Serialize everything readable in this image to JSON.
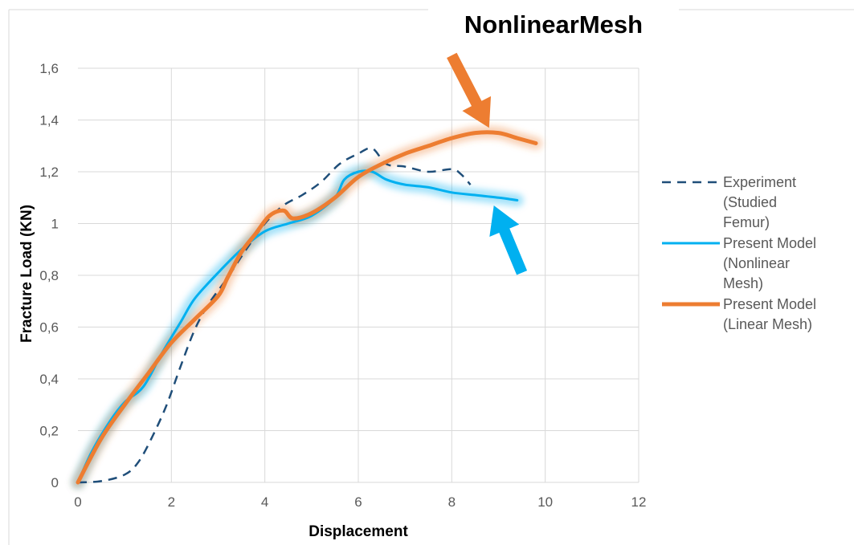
{
  "chart_data": {
    "type": "line",
    "title": "NonlinearMesh",
    "xlabel": "Displacement",
    "ylabel": "Fracture Load (KN)",
    "xlim": [
      0,
      12
    ],
    "ylim": [
      0,
      1.6
    ],
    "x_ticks": [
      "0",
      "2",
      "4",
      "6",
      "8",
      "10",
      "12"
    ],
    "y_ticks": [
      "0",
      "0,2",
      "0,4",
      "0,6",
      "0,8",
      "1",
      "1,2",
      "1,4",
      "1,6"
    ],
    "grid": true,
    "legend_position": "right",
    "series": [
      {
        "name": "Experiment (Studied Femur)",
        "legend_lines": [
          "Experiment",
          "(Studied",
          "Femur)"
        ],
        "color": "#1f4e79",
        "dash": true,
        "glow": false,
        "points": [
          [
            0,
            0
          ],
          [
            0.5,
            0.005
          ],
          [
            1,
            0.03
          ],
          [
            1.3,
            0.08
          ],
          [
            1.6,
            0.18
          ],
          [
            1.9,
            0.3
          ],
          [
            2.2,
            0.45
          ],
          [
            2.5,
            0.59
          ],
          [
            2.8,
            0.69
          ],
          [
            3.2,
            0.79
          ],
          [
            3.6,
            0.9
          ],
          [
            4.0,
            1.0
          ],
          [
            4.4,
            1.07
          ],
          [
            4.8,
            1.11
          ],
          [
            5.2,
            1.16
          ],
          [
            5.6,
            1.23
          ],
          [
            6.0,
            1.27
          ],
          [
            6.3,
            1.29
          ],
          [
            6.6,
            1.23
          ],
          [
            7.0,
            1.22
          ],
          [
            7.5,
            1.2
          ],
          [
            8.0,
            1.21
          ],
          [
            8.2,
            1.19
          ],
          [
            8.4,
            1.15
          ]
        ]
      },
      {
        "name": "Present Model (Nonlinear Mesh)",
        "legend_lines": [
          "Present Model",
          "(Nonlinear",
          "Mesh)"
        ],
        "color": "#00b0f0",
        "dash": false,
        "glow": true,
        "points": [
          [
            0,
            0
          ],
          [
            0.3,
            0.12
          ],
          [
            0.7,
            0.24
          ],
          [
            1.0,
            0.31
          ],
          [
            1.4,
            0.37
          ],
          [
            1.8,
            0.5
          ],
          [
            2.2,
            0.62
          ],
          [
            2.5,
            0.71
          ],
          [
            3.0,
            0.81
          ],
          [
            3.5,
            0.9
          ],
          [
            4.0,
            0.97
          ],
          [
            4.5,
            1.0
          ],
          [
            5.0,
            1.03
          ],
          [
            5.5,
            1.1
          ],
          [
            5.7,
            1.17
          ],
          [
            6.0,
            1.2
          ],
          [
            6.3,
            1.2
          ],
          [
            6.6,
            1.17
          ],
          [
            7.0,
            1.15
          ],
          [
            7.5,
            1.14
          ],
          [
            8.0,
            1.12
          ],
          [
            8.5,
            1.11
          ],
          [
            9.0,
            1.1
          ],
          [
            9.4,
            1.09
          ]
        ]
      },
      {
        "name": "Present Model (Linear Mesh)",
        "legend_lines": [
          "Present Model",
          "(Linear Mesh)"
        ],
        "color": "#ed7d31",
        "dash": false,
        "glow": true,
        "points": [
          [
            0,
            0
          ],
          [
            0.5,
            0.17
          ],
          [
            1.0,
            0.3
          ],
          [
            1.5,
            0.42
          ],
          [
            2.0,
            0.54
          ],
          [
            2.5,
            0.63
          ],
          [
            3.0,
            0.72
          ],
          [
            3.2,
            0.79
          ],
          [
            3.5,
            0.89
          ],
          [
            3.8,
            0.96
          ],
          [
            4.1,
            1.03
          ],
          [
            4.4,
            1.05
          ],
          [
            4.6,
            1.02
          ],
          [
            5.0,
            1.04
          ],
          [
            5.5,
            1.1
          ],
          [
            6.0,
            1.18
          ],
          [
            6.5,
            1.23
          ],
          [
            7.0,
            1.27
          ],
          [
            7.5,
            1.3
          ],
          [
            8.0,
            1.33
          ],
          [
            8.5,
            1.35
          ],
          [
            9.0,
            1.35
          ],
          [
            9.4,
            1.33
          ],
          [
            9.8,
            1.31
          ]
        ]
      }
    ],
    "annotations": [
      {
        "type": "arrow",
        "color": "#ed7d31",
        "from": [
          8.0,
          1.65
        ],
        "to": [
          8.8,
          1.37
        ]
      },
      {
        "type": "arrow",
        "color": "#00b0f0",
        "from": [
          9.5,
          0.81
        ],
        "to": [
          8.9,
          1.07
        ]
      }
    ]
  }
}
